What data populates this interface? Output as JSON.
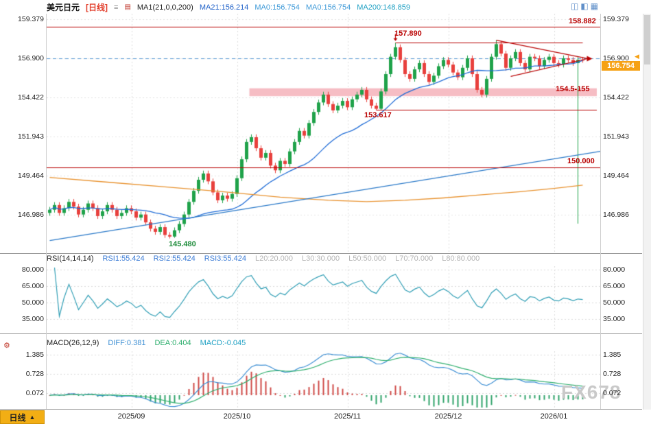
{
  "header": {
    "symbol": "美元日元",
    "period": "[日线]",
    "ma_formula": "MA1(21,0,0,200)",
    "ma21": "MA21:156.214",
    "ma0a": "MA0:156.754",
    "ma0b": "MA0:156.754",
    "ma200": "MA200:148.859"
  },
  "icons": {
    "chart_settings": "≡",
    "ma_legend": "▤",
    "layout_1": "◫",
    "layout_2": "◧",
    "layout_3": "▦",
    "period_arrow": "▲",
    "price_marker": "◀",
    "macd_settings": "⚙"
  },
  "annotations": {
    "resistance_high": "158.882",
    "peak": "157.890",
    "zone": "154.5-155",
    "support": "153.617",
    "round": "150.000",
    "low": "145.480",
    "last_price": "156.754"
  },
  "rsi": {
    "formula": "RSI(14,14,14)",
    "rsi1": "RSI1:55.424",
    "rsi2": "RSI2:55.424",
    "rsi3": "RSI3:55.424",
    "levels": [
      "L20:20.000",
      "L30:30.000",
      "L50:50.000",
      "L70:70.000",
      "L80:80.000"
    ]
  },
  "macd": {
    "formula": "MACD(26,12,9)",
    "diff": "DIFF:0.381",
    "dea": "DEA:0.404",
    "macd": "MACD:-0.045"
  },
  "bottom": {
    "period": "日线"
  },
  "watermark": "FX678",
  "chart_data": {
    "type": "candlestick",
    "symbol": "USD/JPY 美元日元",
    "timeframe": "daily 日线",
    "y_ticks": [
      159.379,
      156.9,
      154.422,
      151.943,
      149.464,
      146.986
    ],
    "rsi_levels": [
      80,
      65,
      50,
      35
    ],
    "macd_ticks": [
      1.385,
      0.728,
      0.072
    ],
    "month_ticks": [
      17,
      39,
      62,
      83,
      105
    ],
    "month_labels": [
      "2025/09",
      "2025/10",
      "2025/11",
      "2025/12",
      "2026/01"
    ],
    "candles": [
      [
        147.1,
        147.48,
        146.92,
        147.3
      ],
      [
        147.3,
        147.78,
        147.12,
        147.6
      ],
      [
        147.6,
        147.78,
        146.92,
        147.1
      ],
      [
        147.1,
        147.58,
        146.92,
        147.4
      ],
      [
        147.4,
        147.98,
        147.22,
        147.8
      ],
      [
        147.8,
        147.98,
        147.32,
        147.5
      ],
      [
        147.5,
        147.68,
        146.82,
        147.0
      ],
      [
        147.0,
        147.48,
        146.82,
        147.3
      ],
      [
        147.3,
        147.88,
        147.12,
        147.7
      ],
      [
        147.7,
        147.88,
        147.22,
        147.4
      ],
      [
        147.4,
        147.58,
        146.72,
        146.9
      ],
      [
        146.9,
        147.38,
        146.72,
        147.2
      ],
      [
        147.2,
        147.78,
        147.02,
        147.6
      ],
      [
        147.6,
        147.78,
        147.12,
        147.3
      ],
      [
        147.3,
        147.48,
        146.72,
        146.9
      ],
      [
        146.9,
        147.28,
        146.72,
        147.1
      ],
      [
        147.1,
        147.58,
        146.92,
        147.4
      ],
      [
        147.4,
        147.58,
        147.02,
        147.2
      ],
      [
        147.2,
        147.38,
        146.62,
        146.8
      ],
      [
        146.8,
        147.18,
        146.62,
        147.0
      ],
      [
        147.0,
        147.18,
        146.32,
        146.5
      ],
      [
        146.5,
        146.68,
        145.92,
        146.1
      ],
      [
        146.1,
        146.28,
        145.72,
        145.9
      ],
      [
        145.9,
        146.38,
        145.72,
        146.2
      ],
      [
        146.2,
        146.38,
        145.52,
        145.7
      ],
      [
        145.7,
        145.88,
        145.48,
        145.6
      ],
      [
        145.6,
        146.18,
        145.52,
        146.0
      ],
      [
        146.0,
        146.58,
        145.82,
        146.4
      ],
      [
        146.4,
        147.18,
        146.22,
        147.0
      ],
      [
        147.0,
        147.98,
        146.82,
        147.8
      ],
      [
        147.8,
        148.68,
        147.62,
        148.5
      ],
      [
        148.5,
        149.38,
        148.32,
        149.2
      ],
      [
        149.2,
        149.78,
        149.02,
        149.6
      ],
      [
        149.6,
        149.78,
        148.92,
        149.1
      ],
      [
        149.1,
        149.28,
        148.22,
        148.4
      ],
      [
        148.4,
        148.58,
        147.72,
        147.9
      ],
      [
        147.9,
        148.38,
        147.72,
        148.2
      ],
      [
        148.2,
        148.38,
        147.82,
        148.0
      ],
      [
        148.0,
        148.48,
        147.82,
        148.3
      ],
      [
        148.3,
        149.48,
        148.12,
        149.3
      ],
      [
        149.3,
        150.68,
        149.12,
        150.5
      ],
      [
        150.5,
        151.78,
        150.32,
        151.6
      ],
      [
        151.6,
        152.08,
        151.42,
        151.9
      ],
      [
        151.9,
        152.08,
        151.02,
        151.2
      ],
      [
        151.2,
        151.38,
        150.42,
        150.6
      ],
      [
        150.6,
        151.08,
        150.42,
        150.9
      ],
      [
        150.9,
        151.08,
        149.92,
        150.1
      ],
      [
        150.1,
        150.28,
        149.62,
        149.8
      ],
      [
        149.8,
        150.58,
        149.62,
        150.4
      ],
      [
        150.4,
        150.58,
        150.02,
        150.2
      ],
      [
        150.2,
        151.18,
        150.02,
        151.0
      ],
      [
        151.0,
        151.78,
        150.82,
        151.6
      ],
      [
        151.6,
        152.48,
        151.42,
        152.3
      ],
      [
        152.3,
        152.48,
        151.82,
        152.0
      ],
      [
        152.0,
        152.98,
        151.82,
        152.8
      ],
      [
        152.8,
        153.68,
        152.62,
        153.5
      ],
      [
        153.5,
        154.28,
        153.32,
        154.1
      ],
      [
        154.1,
        154.78,
        153.92,
        154.6
      ],
      [
        154.6,
        154.78,
        153.82,
        154.0
      ],
      [
        154.0,
        154.18,
        153.42,
        153.6
      ],
      [
        153.6,
        154.08,
        153.42,
        153.9
      ],
      [
        153.9,
        154.38,
        153.72,
        154.2
      ],
      [
        154.2,
        154.38,
        153.62,
        153.8
      ],
      [
        153.8,
        154.48,
        153.62,
        154.3
      ],
      [
        154.3,
        154.78,
        154.12,
        154.6
      ],
      [
        154.6,
        155.08,
        154.42,
        154.9
      ],
      [
        154.9,
        155.08,
        154.12,
        154.3
      ],
      [
        154.3,
        154.48,
        153.72,
        153.9
      ],
      [
        153.9,
        154.08,
        153.62,
        153.7
      ],
      [
        153.7,
        154.98,
        153.62,
        154.8
      ],
      [
        154.8,
        156.08,
        154.62,
        155.9
      ],
      [
        155.9,
        157.18,
        155.72,
        157.0
      ],
      [
        157.0,
        157.89,
        156.82,
        157.6
      ],
      [
        157.6,
        157.78,
        156.62,
        156.8
      ],
      [
        156.8,
        156.98,
        155.72,
        155.9
      ],
      [
        155.9,
        156.08,
        155.42,
        155.6
      ],
      [
        155.6,
        156.38,
        155.42,
        156.2
      ],
      [
        156.2,
        156.78,
        156.02,
        156.6
      ],
      [
        156.6,
        156.78,
        155.72,
        155.9
      ],
      [
        155.9,
        156.08,
        155.22,
        155.4
      ],
      [
        155.4,
        155.98,
        155.22,
        155.8
      ],
      [
        155.8,
        156.58,
        155.62,
        156.4
      ],
      [
        156.4,
        156.98,
        156.22,
        156.8
      ],
      [
        156.8,
        156.98,
        156.32,
        156.5
      ],
      [
        156.5,
        156.68,
        155.82,
        156.0
      ],
      [
        156.0,
        156.18,
        155.52,
        155.7
      ],
      [
        155.7,
        156.48,
        155.52,
        156.3
      ],
      [
        156.3,
        157.08,
        156.12,
        156.9
      ],
      [
        156.9,
        157.08,
        155.72,
        155.9
      ],
      [
        155.9,
        156.08,
        154.72,
        154.9
      ],
      [
        154.9,
        155.08,
        154.42,
        154.6
      ],
      [
        154.6,
        155.78,
        154.42,
        155.6
      ],
      [
        155.6,
        157.18,
        155.42,
        157.0
      ],
      [
        157.0,
        158.05,
        156.82,
        157.8
      ],
      [
        157.8,
        157.98,
        157.02,
        157.2
      ],
      [
        157.2,
        157.38,
        156.12,
        156.3
      ],
      [
        156.3,
        157.08,
        156.12,
        156.9
      ],
      [
        156.9,
        157.48,
        156.72,
        157.3
      ],
      [
        157.3,
        157.48,
        156.42,
        156.6
      ],
      [
        156.6,
        156.78,
        156.02,
        156.2
      ],
      [
        156.2,
        157.18,
        156.02,
        157.0
      ],
      [
        157.0,
        157.18,
        156.72,
        156.9
      ],
      [
        156.9,
        157.08,
        156.22,
        156.4
      ],
      [
        156.4,
        156.98,
        156.22,
        156.8
      ],
      [
        156.8,
        157.18,
        156.62,
        157.0
      ],
      [
        157.0,
        157.18,
        156.42,
        156.6
      ],
      [
        156.6,
        156.78,
        156.32,
        156.5
      ],
      [
        156.5,
        157.08,
        156.32,
        156.9
      ],
      [
        156.9,
        157.08,
        156.62,
        156.8
      ],
      [
        156.8,
        156.98,
        156.42,
        156.6
      ],
      [
        156.6,
        156.98,
        146.42,
        156.8
      ],
      [
        156.8,
        156.98,
        156.62,
        156.75
      ]
    ],
    "overlays": {
      "zone": {
        "from_idx": 42,
        "top": 155.0,
        "bottom": 154.5
      },
      "dashed_price_line": 156.9,
      "hlines": [
        {
          "price": 158.882,
          "full": true
        },
        {
          "price": 150.0,
          "full": true
        },
        {
          "price": 157.89,
          "from": 72,
          "to": 111
        },
        {
          "price": 153.617,
          "from": 68,
          "to": 114
        }
      ],
      "trendline": {
        "from": [
          0,
          145.35
        ],
        "to": [
          115,
          151.0
        ]
      },
      "ma200_points": [
        [
          0,
          149.35
        ],
        [
          12,
          149.05
        ],
        [
          24,
          148.75
        ],
        [
          36,
          148.45
        ],
        [
          48,
          148.1
        ],
        [
          58,
          147.9
        ],
        [
          66,
          147.82
        ],
        [
          74,
          147.9
        ],
        [
          82,
          148.05
        ],
        [
          90,
          148.25
        ],
        [
          98,
          148.45
        ],
        [
          105,
          148.65
        ],
        [
          111,
          148.86
        ]
      ],
      "triangle": [
        {
          "from": [
            93,
            158.05
          ],
          "to": [
            112,
            156.88
          ]
        },
        {
          "from": [
            96,
            155.75
          ],
          "to": [
            112,
            156.88
          ]
        }
      ],
      "peak_arrow": {
        "idx": 72,
        "from": 158.45,
        "to": 158.0
      }
    },
    "colors": {
      "up": "#1fa24a",
      "down": "#e8403d",
      "ma21": "#1e6bd6",
      "ma200": "#e8912d",
      "trendline": "#2878c8",
      "levels": "#b90000",
      "zone": "#f6bdc4",
      "rsi": "#2e9db4",
      "diff": "#3d8fd4",
      "dea": "#2faf6e",
      "hist_pos": "#cf4946",
      "hist_neg": "#2fa36a",
      "accent": "#f6a114"
    }
  }
}
